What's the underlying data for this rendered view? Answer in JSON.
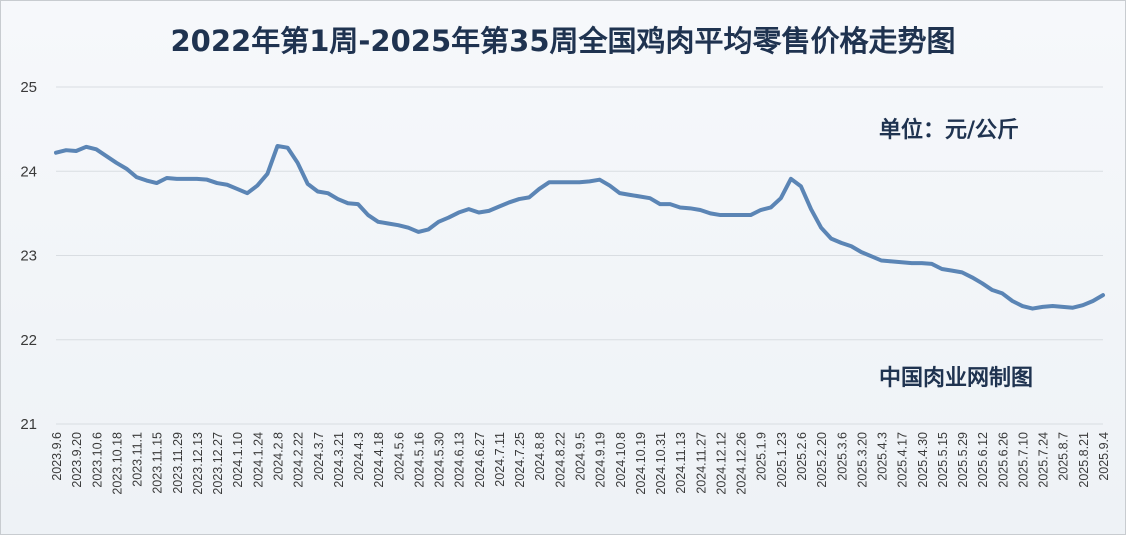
{
  "chart_data": {
    "type": "line",
    "title": "2022年第1周-2025年第35周全国鸡肉平均零售价格走势图",
    "annotations": {
      "unit": "单位：元/公斤",
      "source": "中国肉业网制图"
    },
    "xlabel": "",
    "ylabel": "",
    "ylim": [
      21,
      25
    ],
    "yticks": [
      21,
      22,
      23,
      24,
      25
    ],
    "grid": true,
    "legend": "none",
    "line_color": "#5b85b5",
    "x_tick_labels": [
      "2023.9.6",
      "2023.9.20",
      "2023.10.6",
      "2023.10.18",
      "2023.11.1",
      "2023.11.15",
      "2023.11.29",
      "2023.12.13",
      "2023.12.27",
      "2024.1.10",
      "2024.1.24",
      "2024.2.8",
      "2024.2.22",
      "2024.3.7",
      "2024.3.21",
      "2024.4.3",
      "2024.4.18",
      "2024.5.6",
      "2024.5.16",
      "2024.5.30",
      "2024.6.13",
      "2024.6.27",
      "2024.7.11",
      "2024.7.25",
      "2024.8.8",
      "2024.8.22",
      "2024.9.5",
      "2024.9.19",
      "2024.10.8",
      "2024.10.19",
      "2024.10.31",
      "2024.11.13",
      "2024.11.27",
      "2024.12.12",
      "2024.12.26",
      "2025.1.9",
      "2025.1.23",
      "2025.2.6",
      "2025.2.20",
      "2025.3.6",
      "2025.3.20",
      "2025.4.3",
      "2025.4.17",
      "2025.4.30",
      "2025.5.15",
      "2025.5.29",
      "2025.6.12",
      "2025.6.26",
      "2025.7.10",
      "2025.7.24",
      "2025.8.7",
      "2025.8.21",
      "2025.9.4"
    ],
    "series": [
      {
        "values": [
          24.22,
          24.25,
          24.24,
          24.29,
          24.26,
          24.18,
          24.1,
          24.03,
          23.93,
          23.89,
          23.86,
          23.92,
          23.91,
          23.91,
          23.91,
          23.9,
          23.86,
          23.84,
          23.79,
          23.74,
          23.83,
          23.97,
          24.3,
          24.28,
          24.1,
          23.85,
          23.76,
          23.74,
          23.67,
          23.62,
          23.61,
          23.48,
          23.4,
          23.38,
          23.36,
          23.33,
          23.28,
          23.31,
          23.4,
          23.45,
          23.51,
          23.55,
          23.51,
          23.53,
          23.58,
          23.63,
          23.67,
          23.69,
          23.79,
          23.87,
          23.87,
          23.87,
          23.87,
          23.88,
          23.9,
          23.83,
          23.74,
          23.72,
          23.7,
          23.68,
          23.61,
          23.61,
          23.57,
          23.56,
          23.54,
          23.5,
          23.48,
          23.48,
          23.48,
          23.48,
          23.54,
          23.57,
          23.68,
          23.91,
          23.82,
          23.55,
          23.33,
          23.2,
          23.15,
          23.11,
          23.04,
          22.99,
          22.94,
          22.93,
          22.92,
          22.91,
          22.91,
          22.9,
          22.84,
          22.82,
          22.8,
          22.74,
          22.67,
          22.59,
          22.55,
          22.46,
          22.4,
          22.37,
          22.39,
          22.4,
          22.39,
          22.38,
          22.41,
          22.46,
          22.53
        ]
      }
    ]
  }
}
